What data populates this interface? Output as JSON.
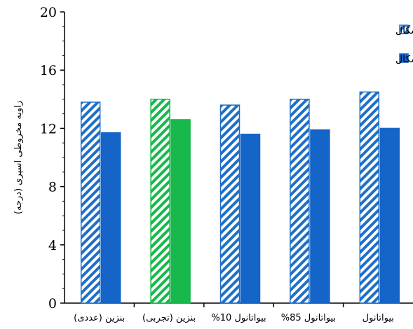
{
  "chart_data": {
    "type": "bar",
    "ylabel": "زاویه مخروطی اسپری (درجه)",
    "ylim": [
      0,
      20
    ],
    "yticks": [
      0,
      4,
      8,
      12,
      16,
      20
    ],
    "grid": false,
    "legend_position": "top-right",
    "categories": [
      "بنزین (عددی)",
      "بنزین (تجربی)",
      "بیواتانول 10%",
      "بیواتانول 85%",
      "بیواتانول"
    ],
    "series": [
      {
        "name": "فشار پاشش 10 مگاپاسگال",
        "pattern": "hatched",
        "color": "#1f6fc6",
        "values": [
          13.8,
          14.0,
          13.6,
          14.0,
          14.5
        ]
      },
      {
        "name": "فشار پاشش 15 مگاپسکال",
        "pattern": "solid",
        "color": "#1565c8",
        "values": [
          11.7,
          12.6,
          11.6,
          11.9,
          12.0
        ]
      }
    ],
    "highlight": {
      "category_index": 1,
      "color": "#18b84c"
    }
  }
}
